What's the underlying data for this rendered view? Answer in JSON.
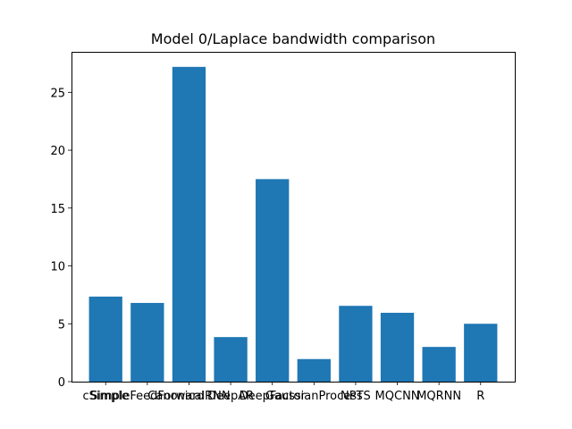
{
  "chart_data": {
    "type": "bar",
    "title": "Model 0/Laplace bandwidth comparison",
    "xlabel": "",
    "ylabel": "",
    "categories": [
      "cSimple",
      "SimpleFeedForward",
      "CanonicalRNN",
      "DeepAR",
      "DeepFactor",
      "GaussianProcess",
      "NPTS",
      "MQCNN",
      "MQRNN",
      "R"
    ],
    "values": [
      7.35,
      6.8,
      27.2,
      3.85,
      17.5,
      1.95,
      6.55,
      5.95,
      3.0,
      5.0
    ],
    "ylim": [
      0,
      28.5
    ],
    "yticks": [
      0,
      5,
      10,
      15,
      20,
      25
    ],
    "bar_color": "#1f77b4",
    "grid": false,
    "legend": "none"
  }
}
